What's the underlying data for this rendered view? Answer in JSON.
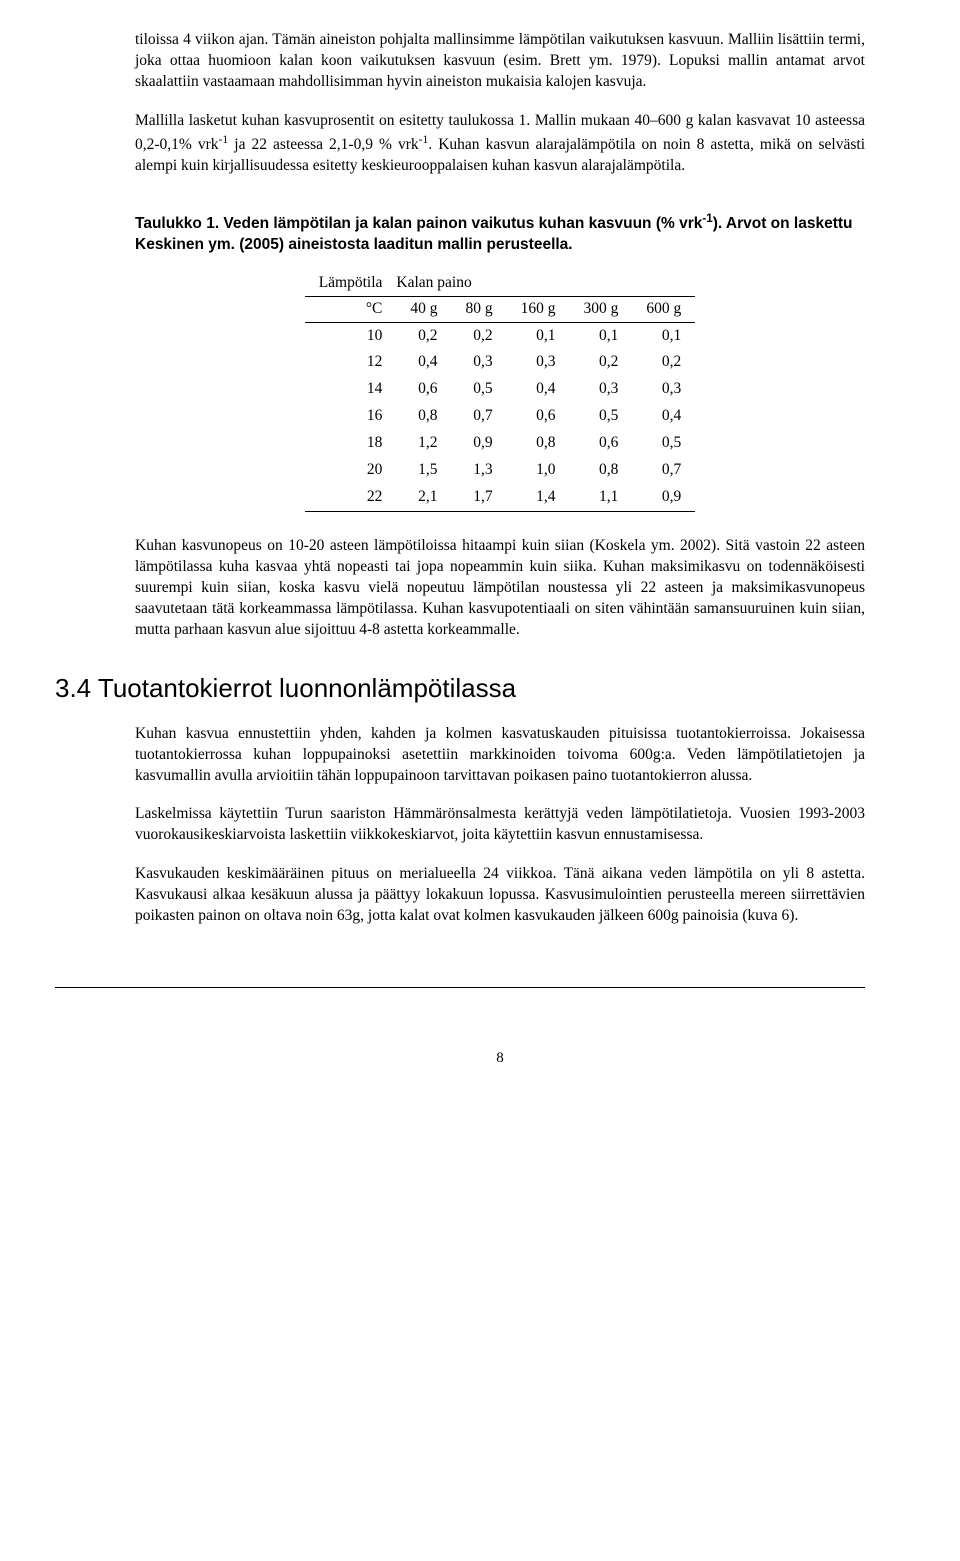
{
  "paragraphs": {
    "p1": "tiloissa 4 viikon ajan. Tämän aineiston pohjalta mallinsimme lämpötilan vaikutuksen kasvuun. Malliin lisättiin termi, joka ottaa huomioon kalan koon vaikutuksen kasvuun (esim. Brett ym. 1979). Lopuksi mallin antamat arvot skaalattiin vastaamaan mahdollisimman hyvin aineiston mukaisia kalojen kasvuja.",
    "p2_a": "Mallilla lasketut kuhan kasvuprosentit on esitetty taulukossa 1. Mallin mukaan 40–600 g kalan kasvavat 10 asteessa 0,2-0,1% vrk",
    "p2_b": " ja 22 asteessa 2,1-0,9 % vrk",
    "p2_c": ". Kuhan kasvun alarajalämpötila on noin 8 astetta, mikä on selvästi alempi kuin kirjallisuudessa esitetty keskieurooppalaisen kuhan kasvun alarajalämpötila.",
    "caption_a": "Taulukko 1. Veden lämpötilan ja kalan painon vaikutus kuhan kasvuun (% vrk",
    "caption_b": "). Arvot on laskettu Keskinen ym. (2005) aineistosta laaditun mallin perusteella.",
    "p3": "Kuhan kasvunopeus on 10-20 asteen lämpötiloissa hitaampi kuin siian (Koskela ym. 2002). Sitä vastoin 22 asteen lämpötilassa kuha kasvaa yhtä nopeasti tai jopa nopeammin kuin siika. Kuhan maksimikasvu on todennäköisesti suurempi kuin siian, koska kasvu vielä nopeutuu lämpötilan noustessa yli 22 asteen ja maksimikasvunopeus saavutetaan tätä korkeammassa lämpötilassa. Kuhan kasvupotentiaali on siten vähintään samansuuruinen kuin siian, mutta parhaan kasvun alue sijoittuu 4-8 astetta korkeammalle.",
    "h2": "3.4 Tuotantokierrot luonnonlämpötilassa",
    "p4": "Kuhan kasvua ennustettiin yhden, kahden ja kolmen kasvatuskauden pituisissa tuotantokierroissa. Jokaisessa tuotantokierrossa kuhan loppupainoksi asetettiin markkinoiden toivoma 600g:a. Veden lämpötilatietojen ja kasvumallin avulla arvioitiin tähän loppupainoon tarvittavan poikasen paino tuotantokierron alussa.",
    "p5": "Laskelmissa käytettiin Turun saariston Hämmärönsalmesta kerättyjä veden lämpötilatietoja. Vuosien 1993-2003 vuorokausikeskiarvoista laskettiin viikkokeskiarvot, joita käytettiin kasvun ennustamisessa.",
    "p6": "Kasvukauden keskimääräinen pituus on merialueella 24 viikkoa. Tänä aikana veden lämpötila on yli 8 astetta. Kasvukausi alkaa kesäkuun alussa ja päättyy lokakuun lopussa. Kasvusimulointien perusteella mereen siirrettävien poikasten painon on oltava noin 63g, jotta kalat ovat kolmen kasvukauden jälkeen 600g painoisia (kuva 6).",
    "pagenum": "8"
  },
  "table": {
    "header1_left": "Lämpötila",
    "header1_right": "Kalan paino",
    "header2": [
      "°C",
      "40 g",
      "80 g",
      "160 g",
      "300 g",
      "600 g"
    ],
    "rows": [
      [
        "10",
        "0,2",
        "0,2",
        "0,1",
        "0,1",
        "0,1"
      ],
      [
        "12",
        "0,4",
        "0,3",
        "0,3",
        "0,2",
        "0,2"
      ],
      [
        "14",
        "0,6",
        "0,5",
        "0,4",
        "0,3",
        "0,3"
      ],
      [
        "16",
        "0,8",
        "0,7",
        "0,6",
        "0,5",
        "0,4"
      ],
      [
        "18",
        "1,2",
        "0,9",
        "0,8",
        "0,6",
        "0,5"
      ],
      [
        "20",
        "1,5",
        "1,3",
        "1,0",
        "0,8",
        "0,7"
      ],
      [
        "22",
        "2,1",
        "1,7",
        "1,4",
        "1,1",
        "0,9"
      ]
    ]
  }
}
